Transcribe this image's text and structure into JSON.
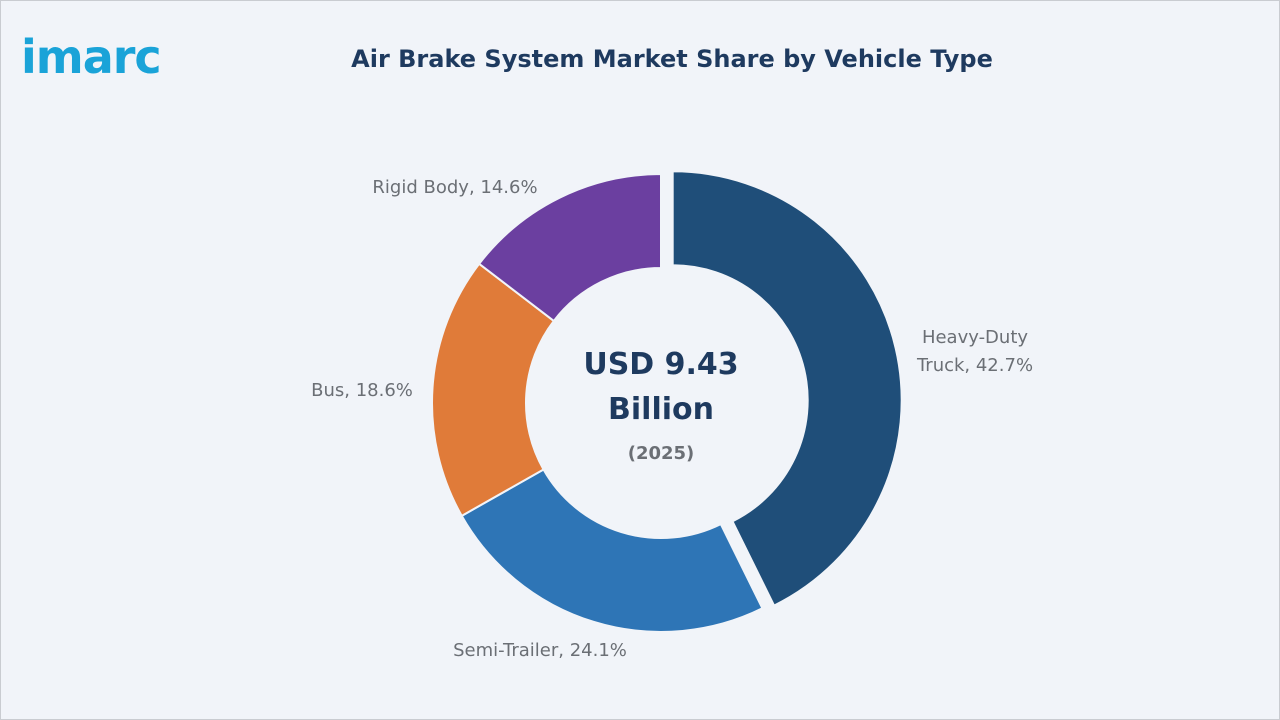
{
  "brand": {
    "logo_text": "imarc",
    "color": "#1aa3d8"
  },
  "chart_data": {
    "type": "pie",
    "variant": "donut",
    "title": "Air Brake System Market Share by Vehicle Type",
    "center": {
      "value_line1": "USD 9.43",
      "value_line2": "Billion",
      "year": "(2025)"
    },
    "slices": [
      {
        "label": "Heavy-Duty Truck",
        "label_lines": [
          "Heavy-Duty",
          "Truck, 42.7%"
        ],
        "value": 42.7,
        "color": "#1f4e79",
        "exploded": true
      },
      {
        "label": "Semi-Trailer",
        "label_lines": [
          "Semi-Trailer, 24.1%"
        ],
        "value": 24.1,
        "color": "#2e75b6",
        "exploded": false
      },
      {
        "label": "Bus",
        "label_lines": [
          "Bus, 18.6%"
        ],
        "value": 18.6,
        "color": "#e07b39",
        "exploded": false
      },
      {
        "label": "Rigid Body",
        "label_lines": [
          "Rigid Body, 14.6%"
        ],
        "value": 14.6,
        "color": "#6b3fa0",
        "exploded": false
      }
    ]
  }
}
